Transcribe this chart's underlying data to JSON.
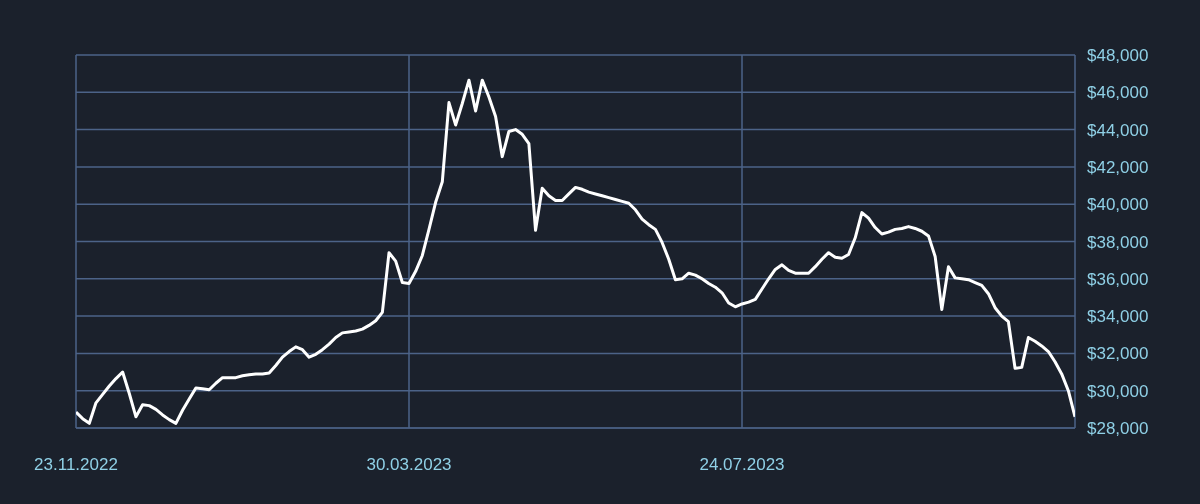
{
  "chart_data": {
    "type": "line",
    "categories": [
      "23.11.2022",
      null,
      null,
      null,
      null,
      null,
      null,
      null,
      null,
      null,
      null,
      null,
      null,
      null,
      null,
      null,
      null,
      null,
      null,
      null,
      null,
      null,
      null,
      null,
      null,
      null,
      null,
      null,
      null,
      null,
      null,
      null,
      null,
      null,
      null,
      null,
      null,
      null,
      null,
      null,
      null,
      null,
      null,
      null,
      null,
      null,
      null,
      null,
      null,
      null,
      "30.03.2023",
      null,
      null,
      null,
      null,
      null,
      null,
      null,
      null,
      null,
      null,
      null,
      null,
      null,
      null,
      null,
      null,
      null,
      null,
      null,
      null,
      null,
      null,
      null,
      null,
      null,
      null,
      null,
      null,
      null,
      null,
      null,
      null,
      null,
      null,
      null,
      null,
      null,
      null,
      null,
      null,
      null,
      null,
      null,
      null,
      null,
      null,
      null,
      null,
      null,
      "24.07.2023",
      null,
      null,
      null,
      null,
      null,
      null,
      null,
      null,
      null,
      null,
      null,
      null,
      null,
      null,
      null,
      null,
      null,
      null,
      null,
      null,
      null,
      null,
      null,
      null,
      null,
      null,
      null,
      null,
      null,
      null,
      null,
      null,
      null,
      null,
      null,
      null,
      null,
      null,
      null,
      null,
      null,
      null,
      null,
      null,
      null,
      null,
      null,
      null,
      null,
      null
    ],
    "series": [
      {
        "color": "#ffffff",
        "values": [
          28850,
          28500,
          28250,
          29350,
          29800,
          30250,
          30650,
          31000,
          29850,
          28600,
          29250,
          29200,
          29000,
          28700,
          28450,
          28250,
          28950,
          29550,
          30150,
          30100,
          30050,
          30400,
          30700,
          30700,
          30700,
          30800,
          30850,
          30900,
          30900,
          30950,
          31350,
          31800,
          32100,
          32350,
          32200,
          31800,
          31950,
          32200,
          32500,
          32850,
          33100,
          33150,
          33200,
          33300,
          33500,
          33750,
          34200,
          37400,
          36950,
          35800,
          35750,
          36400,
          37250,
          38650,
          40100,
          41200,
          45450,
          44250,
          45400,
          46650,
          45000,
          46650,
          45750,
          44700,
          42550,
          43900,
          44000,
          43750,
          43250,
          38600,
          40850,
          40450,
          40200,
          40200,
          40550,
          40900,
          40800,
          40650,
          40550,
          40450,
          40350,
          40250,
          40150,
          40050,
          39700,
          39200,
          38900,
          38650,
          37950,
          37050,
          35950,
          36000,
          36300,
          36200,
          36000,
          35750,
          35550,
          35250,
          34700,
          34500,
          34650,
          34750,
          34900,
          35450,
          36000,
          36500,
          36750,
          36450,
          36300,
          36300,
          36300,
          36650,
          37050,
          37400,
          37150,
          37100,
          37300,
          38200,
          39550,
          39250,
          38750,
          38400,
          38500,
          38650,
          38700,
          38800,
          38700,
          38550,
          38300,
          37200,
          34350,
          36650,
          36050,
          36000,
          35950,
          35800,
          35650,
          35200,
          34450,
          34000,
          33700,
          31200,
          31250,
          32850,
          32650,
          32400,
          32100,
          31550,
          30900,
          30000,
          28600
        ]
      }
    ],
    "ylim": [
      28000,
      48000
    ],
    "yticks": [
      {
        "value": 28000,
        "label": "$28,000"
      },
      {
        "value": 30000,
        "label": "$30,000"
      },
      {
        "value": 32000,
        "label": "$32,000"
      },
      {
        "value": 34000,
        "label": "$34,000"
      },
      {
        "value": 36000,
        "label": "$36,000"
      },
      {
        "value": 38000,
        "label": "$38,000"
      },
      {
        "value": 40000,
        "label": "$40,000"
      },
      {
        "value": 42000,
        "label": "$42,000"
      },
      {
        "value": 44000,
        "label": "$44,000"
      },
      {
        "value": 46000,
        "label": "$46,000"
      },
      {
        "value": 48000,
        "label": "$48,000"
      }
    ],
    "grid": true,
    "marker": "none",
    "line_style": "solid"
  }
}
